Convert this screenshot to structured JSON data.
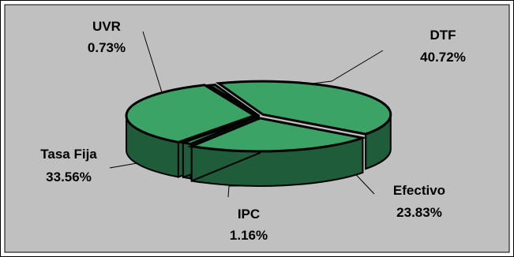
{
  "chart_data": {
    "type": "pie",
    "title": "",
    "style": "3d-exploded",
    "legend": "none",
    "slices": [
      {
        "name": "DTF",
        "label": "DTF",
        "value_label": "40.72%",
        "value": 40.72
      },
      {
        "name": "Efectivo",
        "label": "Efectivo",
        "value_label": "23.83%",
        "value": 23.83
      },
      {
        "name": "IPC",
        "label": "IPC",
        "value_label": "1.16%",
        "value": 1.16
      },
      {
        "name": "Tasa Fija",
        "label": "Tasa Fija",
        "value_label": "33.56%",
        "value": 33.56
      },
      {
        "name": "UVR",
        "label": "UVR",
        "value_label": "0.73%",
        "value": 0.73
      }
    ]
  },
  "colors": {
    "plot_background": "#c0c0c0",
    "slice_top": "#3aa365",
    "slice_side": "#1f5c3a",
    "slice_outline": "#000000"
  }
}
